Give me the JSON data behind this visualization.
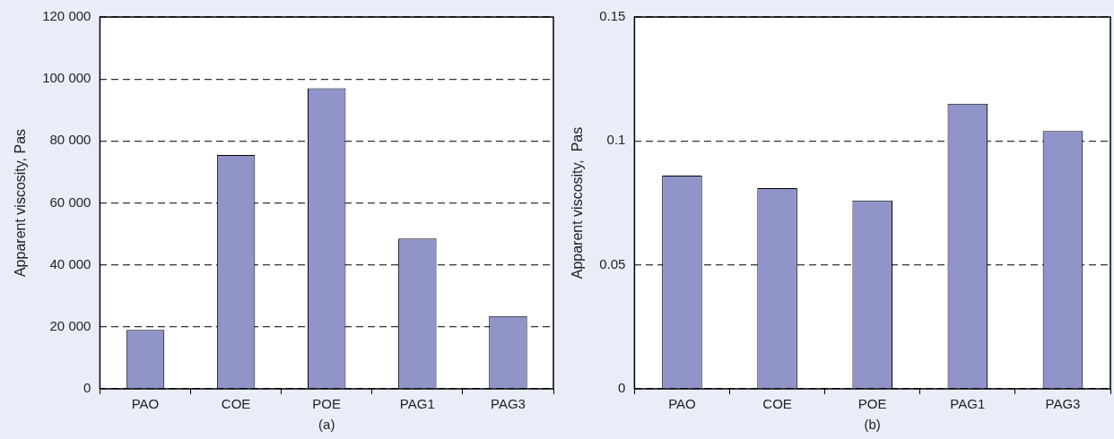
{
  "chart_data": [
    {
      "type": "bar",
      "xlabel": "(a)",
      "ylabel": "Apparent viscosity, Pas",
      "categories": [
        "PAO",
        "COE",
        "POE",
        "PAG1",
        "PAG3"
      ],
      "values": [
        19000,
        75500,
        97000,
        48500,
        23500
      ],
      "color": "#9094c8",
      "ylim": [
        0,
        120000
      ],
      "yticks": [
        0,
        {
          "value": 20000,
          "label": "20 000"
        },
        {
          "value": 40000,
          "label": "40 000"
        },
        {
          "value": 60000,
          "label": "60 000"
        },
        {
          "value": 80000,
          "label": "80 000"
        },
        {
          "value": 100000,
          "label": "100 000"
        },
        {
          "value": 120000,
          "label": "120 000"
        }
      ],
      "grid": "y",
      "legend": false
    },
    {
      "type": "bar",
      "xlabel": "(b)",
      "ylabel": "Apparent viscosity,  Pas",
      "categories": [
        "PAO",
        "COE",
        "POE",
        "PAG1",
        "PAG3"
      ],
      "values": [
        0.086,
        0.081,
        0.076,
        0.115,
        0.104
      ],
      "color": "#9094c8",
      "ylim": [
        0,
        0.15
      ],
      "yticks": [
        0,
        0.05,
        0.1,
        0.15
      ],
      "grid": "y",
      "legend": false
    }
  ]
}
